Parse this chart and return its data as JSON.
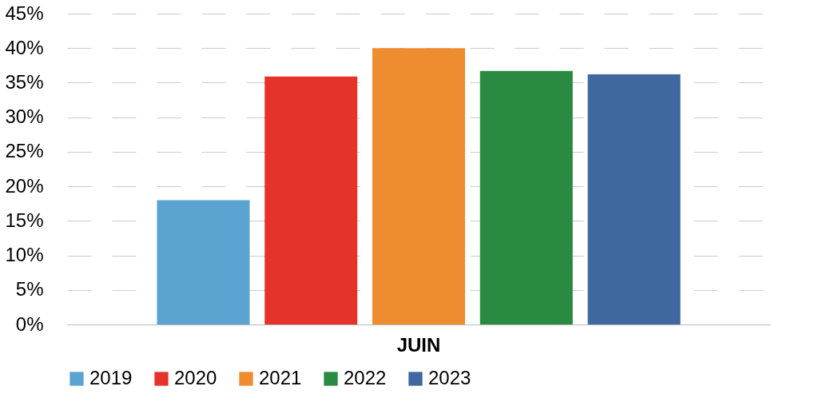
{
  "chart_data": {
    "type": "bar",
    "categories": [
      "JUIN"
    ],
    "series": [
      {
        "name": "2019",
        "color": "#5ba3d0",
        "values": [
          18
        ]
      },
      {
        "name": "2020",
        "color": "#e5322b",
        "values": [
          35.9
        ]
      },
      {
        "name": "2021",
        "color": "#f08c30",
        "values": [
          40
        ]
      },
      {
        "name": "2022",
        "color": "#2a8a41",
        "values": [
          36.7
        ]
      },
      {
        "name": "2023",
        "color": "#3f68a0",
        "values": [
          36.2
        ]
      }
    ],
    "ylim": [
      0,
      45
    ],
    "yticks": [
      {
        "value": 0,
        "label": "0%"
      },
      {
        "value": 5,
        "label": "5%"
      },
      {
        "value": 10,
        "label": "10%"
      },
      {
        "value": 15,
        "label": "15%"
      },
      {
        "value": 20,
        "label": "20%"
      },
      {
        "value": 25,
        "label": "25%"
      },
      {
        "value": 30,
        "label": "30%"
      },
      {
        "value": 35,
        "label": "35%"
      },
      {
        "value": 40,
        "label": "40%"
      },
      {
        "value": 45,
        "label": "45%"
      }
    ],
    "grid": "y",
    "legend": "bottom"
  }
}
